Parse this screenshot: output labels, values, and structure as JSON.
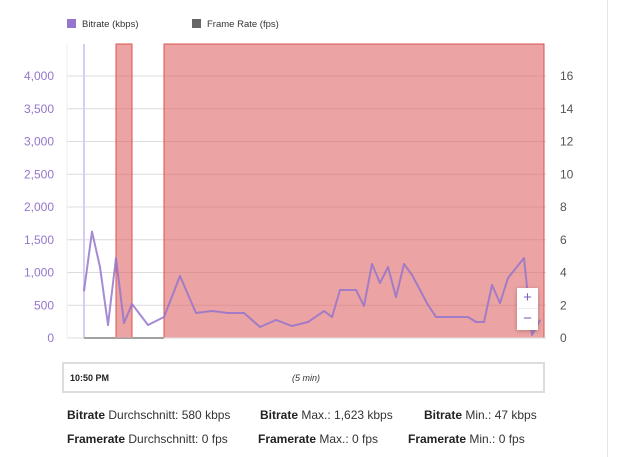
{
  "chart_data": {
    "type": "line",
    "legend": [
      {
        "name": "Bitrate (kbps)",
        "color": "#9575cd"
      },
      {
        "name": "Frame Rate (fps)",
        "color": "#666666"
      }
    ],
    "legend_position": "top-left",
    "grid": true,
    "y_left": {
      "ticks": [
        "0",
        "500",
        "1,000",
        "1,500",
        "2,000",
        "2,500",
        "3,000",
        "3,500",
        "4,000"
      ],
      "range": [
        0,
        4000
      ],
      "color": "#9575cd"
    },
    "y_right": {
      "ticks": [
        "0",
        "2",
        "4",
        "6",
        "8",
        "10",
        "12",
        "14",
        "16"
      ],
      "range": [
        0,
        16
      ]
    },
    "x_sample_index": [
      0,
      1,
      2,
      3,
      4,
      5,
      6,
      8,
      10,
      12,
      14,
      16,
      18,
      20,
      22,
      24,
      26,
      28,
      30,
      31,
      32,
      34,
      35,
      36,
      37,
      38,
      39,
      40,
      41,
      43,
      44,
      46,
      48,
      49,
      50,
      51,
      52,
      53,
      55,
      56,
      57
    ],
    "series": [
      {
        "name": "Bitrate (kbps)",
        "color": "#9575cd",
        "values": [
          718,
          1623,
          1084,
          198,
          1221,
          229,
          519,
          198,
          321,
          947,
          382,
          412,
          382,
          382,
          168,
          275,
          183,
          244,
          412,
          321,
          733,
          733,
          489,
          1130,
          840,
          1084,
          626,
          1130,
          962,
          504,
          321,
          321,
          321,
          244,
          244,
          809,
          534,
          916,
          1221,
          47,
          275
        ]
      },
      {
        "name": "Frame Rate (fps)",
        "color": "#666666",
        "x_range": [
          0,
          10
        ],
        "value": 0
      }
    ],
    "highlight_bands": [
      {
        "from": 4,
        "to": 6
      },
      {
        "from": 10,
        "to": 57.5
      }
    ],
    "band_color": "#e06666"
  },
  "timeline": {
    "start": "10:50 PM",
    "span": "(5 min)"
  },
  "zoom": {
    "in": "+",
    "out": "−"
  },
  "stats": [
    {
      "label": "Bitrate",
      "text": " Durchschnitt: 580 kbps"
    },
    {
      "label": "Bitrate",
      "text": " Max.: 1,623 kbps"
    },
    {
      "label": "Bitrate",
      "text": " Min.: 47 kbps"
    },
    {
      "label": "Framerate",
      "text": " Durchschnitt: 0 fps"
    },
    {
      "label": "Framerate",
      "text": " Max.: 0 fps"
    },
    {
      "label": "Framerate",
      "text": " Min.: 0 fps"
    }
  ]
}
